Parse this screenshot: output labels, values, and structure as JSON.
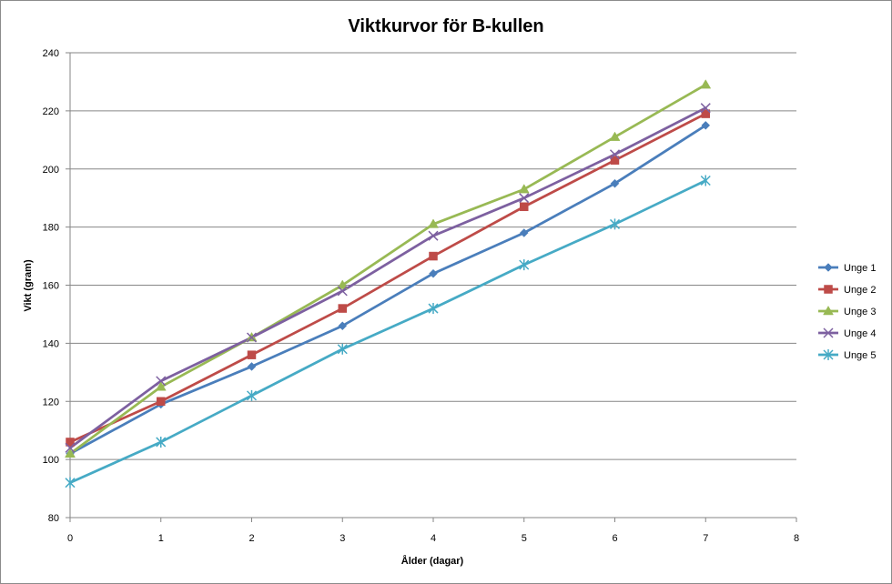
{
  "chart_data": {
    "type": "line",
    "title": "Viktkurvor för B-kullen",
    "xlabel": "Ålder (dagar)",
    "ylabel": "Vikt (gram)",
    "xlim": [
      0,
      8
    ],
    "ylim": [
      80,
      240
    ],
    "x_ticks": [
      "0",
      "1",
      "2",
      "3",
      "4",
      "5",
      "6",
      "7",
      "8"
    ],
    "y_ticks": [
      "80",
      "100",
      "120",
      "140",
      "160",
      "180",
      "200",
      "220",
      "240"
    ],
    "grid": "horizontal",
    "legend_position": "right",
    "x": [
      0,
      1,
      2,
      3,
      4,
      5,
      6,
      7
    ],
    "series": [
      {
        "name": "Unge 1",
        "values": [
          102,
          119,
          132,
          146,
          164,
          178,
          195,
          215
        ],
        "color": "#4a7ebb",
        "marker": "diamond"
      },
      {
        "name": "Unge 2",
        "values": [
          106,
          120,
          136,
          152,
          170,
          187,
          203,
          219
        ],
        "color": "#be4b48",
        "marker": "square"
      },
      {
        "name": "Unge 3",
        "values": [
          102,
          125,
          142,
          160,
          181,
          193,
          211,
          229
        ],
        "color": "#98b954",
        "marker": "triangle"
      },
      {
        "name": "Unge 4",
        "values": [
          104,
          127,
          142,
          158,
          177,
          190,
          205,
          221
        ],
        "color": "#7d60a0",
        "marker": "x"
      },
      {
        "name": "Unge 5",
        "values": [
          92,
          106,
          122,
          138,
          152,
          167,
          181,
          196
        ],
        "color": "#46aac5",
        "marker": "star"
      }
    ]
  }
}
